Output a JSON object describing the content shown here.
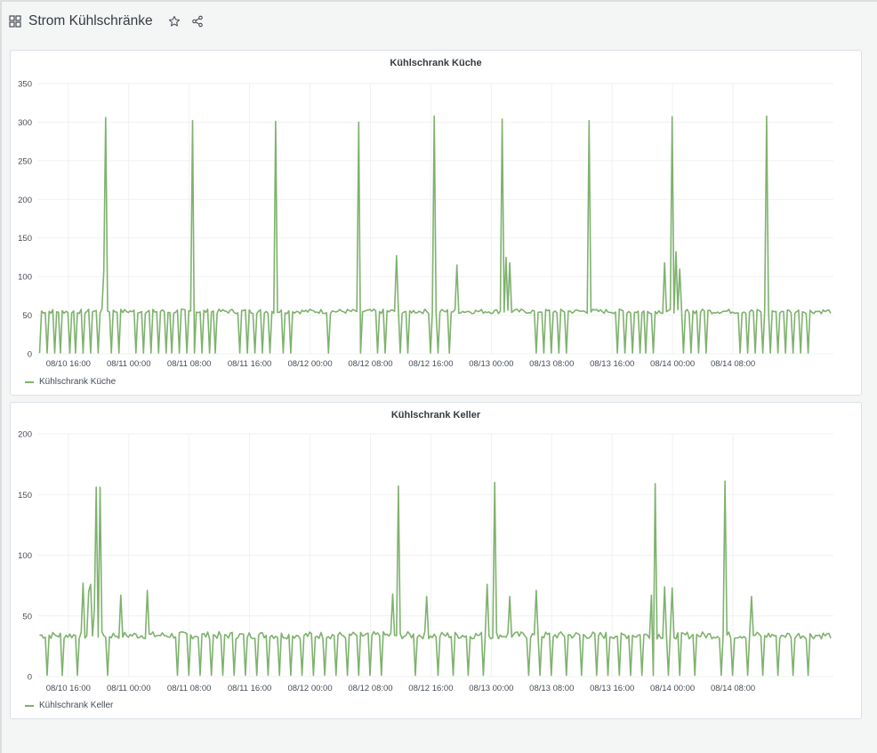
{
  "dashboard": {
    "title": "Strom Kühlschränke",
    "icons": {
      "dashboard": "dashboard-grid-icon",
      "star": "star-icon",
      "share": "share-icon"
    }
  },
  "colors": {
    "series": "#7eb26d",
    "grid": "#f0f1f2",
    "panel_border": "#dce1e6",
    "background": "#f4f5f5"
  },
  "panels": [
    {
      "title": "Kühlschrank Küche",
      "legend": "Kühlschrank Küche"
    },
    {
      "title": "Kühlschrank Keller",
      "legend": "Kühlschrank Keller"
    }
  ],
  "chart_data": [
    {
      "type": "line",
      "title": "Kühlschrank Küche",
      "x_tick_labels": [
        "08/10 16:00",
        "08/11 00:00",
        "08/11 08:00",
        "08/11 16:00",
        "08/12 00:00",
        "08/12 08:00",
        "08/12 16:00",
        "08/13 00:00",
        "08/13 08:00",
        "08/13 16:00",
        "08/14 00:00",
        "08/14 08:00"
      ],
      "x_range_hours": [
        -4.1,
        101.3
      ],
      "ylim": [
        0,
        350
      ],
      "y_ticks": [
        0,
        50,
        100,
        150,
        200,
        250,
        300,
        350
      ],
      "grid": true,
      "legend_position": "bottom-left",
      "series": [
        {
          "name": "Kühlschrank Küche",
          "color": "#7eb26d",
          "baseline": 55,
          "dips": [
            -3.8,
            -2.9,
            -1.9,
            -1.0,
            0.1,
            1.0,
            2.0,
            3.0,
            3.9,
            4.9,
            5.8,
            6.8,
            9.0,
            10.0,
            11.0,
            11.9,
            12.9,
            13.8,
            14.8,
            15.7,
            16.7,
            17.6,
            18.6,
            19.5,
            22.8,
            23.7,
            24.7,
            25.7,
            26.6,
            27.5,
            28.5,
            29.5,
            34.4,
            38.8,
            41.0,
            42.0,
            44.0,
            45.0,
            48.0,
            49.0,
            50.5,
            62.0,
            63.0,
            64.0,
            65.0,
            66.0,
            72.6,
            73.6,
            74.6,
            75.6,
            76.5,
            77.5,
            80.5,
            81.5,
            82.5,
            83.5,
            84.5,
            89.0,
            90.0,
            91.0,
            92.0,
            93.0,
            94.0,
            95.0,
            96.0,
            97.0,
            98.0
          ],
          "peaks": [
            {
              "x": 5.0,
              "y": 306
            },
            {
              "x": 4.6,
              "y": 107
            },
            {
              "x": 16.5,
              "y": 302
            },
            {
              "x": 27.5,
              "y": 301
            },
            {
              "x": 38.5,
              "y": 300
            },
            {
              "x": 43.5,
              "y": 127
            },
            {
              "x": 48.5,
              "y": 308
            },
            {
              "x": 51.5,
              "y": 115
            },
            {
              "x": 57.5,
              "y": 304
            },
            {
              "x": 58.0,
              "y": 125
            },
            {
              "x": 58.5,
              "y": 118
            },
            {
              "x": 69.0,
              "y": 302
            },
            {
              "x": 79.0,
              "y": 118
            },
            {
              "x": 80.0,
              "y": 307
            },
            {
              "x": 80.5,
              "y": 132
            },
            {
              "x": 81.0,
              "y": 110
            },
            {
              "x": 92.5,
              "y": 308
            }
          ]
        }
      ]
    },
    {
      "type": "line",
      "title": "Kühlschrank Keller",
      "x_tick_labels": [
        "08/10 16:00",
        "08/11 00:00",
        "08/11 08:00",
        "08/11 16:00",
        "08/12 00:00",
        "08/12 08:00",
        "08/12 16:00",
        "08/13 00:00",
        "08/13 08:00",
        "08/13 16:00",
        "08/14 00:00",
        "08/14 08:00"
      ],
      "x_range_hours": [
        -4.1,
        101.3
      ],
      "ylim": [
        0,
        200
      ],
      "y_ticks": [
        0,
        50,
        100,
        150,
        200
      ],
      "grid": true,
      "legend_position": "bottom-left",
      "series": [
        {
          "name": "Kühlschrank Keller",
          "color": "#7eb26d",
          "baseline": 34,
          "dips": [
            -2.8,
            -0.8,
            1.2,
            3.0,
            4.2,
            5.2,
            7.0,
            10.5,
            14.5,
            16.0,
            17.5,
            19.0,
            20.5,
            22.0,
            23.5,
            25.0,
            26.5,
            28.0,
            29.5,
            31.0,
            32.5,
            34.0,
            35.5,
            37.0,
            38.5,
            40.0,
            41.5,
            43.0,
            46.0,
            47.5,
            49.0,
            51.0,
            53.0,
            55.0,
            56.5,
            58.5,
            61.0,
            62.5,
            64.0,
            66.0,
            68.0,
            70.0,
            71.5,
            73.0,
            74.5,
            76.0,
            77.5,
            79.5,
            81.0,
            83.0,
            86.5,
            88.0,
            90.0,
            92.0,
            94.0,
            96.0,
            98.0
          ],
          "peaks": [
            {
              "x": 2.0,
              "y": 77
            },
            {
              "x": 2.6,
              "y": 70
            },
            {
              "x": 3.0,
              "y": 76
            },
            {
              "x": 3.5,
              "y": 55
            },
            {
              "x": 3.8,
              "y": 156
            },
            {
              "x": 4.2,
              "y": 156
            },
            {
              "x": 7.0,
              "y": 67
            },
            {
              "x": 10.5,
              "y": 71
            },
            {
              "x": 43.0,
              "y": 68
            },
            {
              "x": 43.6,
              "y": 157
            },
            {
              "x": 47.5,
              "y": 66
            },
            {
              "x": 55.5,
              "y": 76
            },
            {
              "x": 56.5,
              "y": 160
            },
            {
              "x": 58.5,
              "y": 66
            },
            {
              "x": 62.0,
              "y": 71
            },
            {
              "x": 77.2,
              "y": 67
            },
            {
              "x": 77.7,
              "y": 159
            },
            {
              "x": 79.0,
              "y": 74
            },
            {
              "x": 80.0,
              "y": 73
            },
            {
              "x": 87.0,
              "y": 161
            },
            {
              "x": 90.5,
              "y": 66
            }
          ]
        }
      ]
    }
  ]
}
